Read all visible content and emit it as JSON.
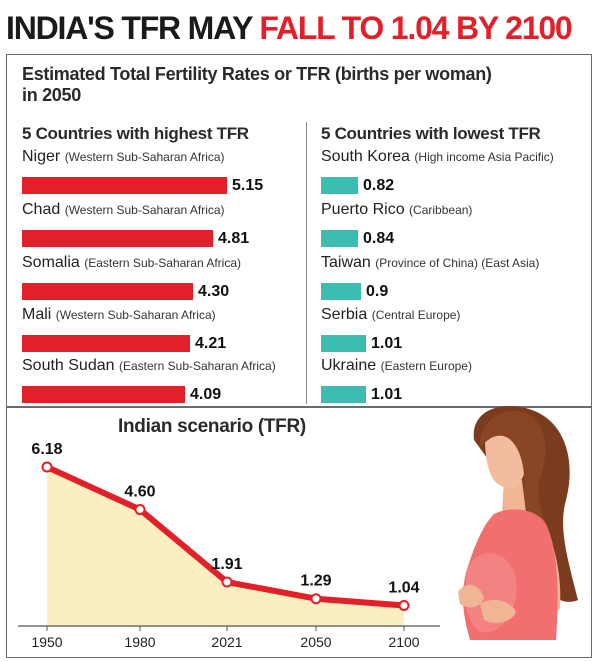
{
  "headline": {
    "part1": "INDIA'S TFR MAY ",
    "part2": "FALL TO 1.04 BY 2100"
  },
  "subtitle": "Estimated Total Fertility Rates or TFR (births per woman) in 2050",
  "chart_data": [
    {
      "type": "bar",
      "title": "5 Countries with highest TFR",
      "categories": [
        "Niger",
        "Chad",
        "Somalia",
        "Mali",
        "South Sudan"
      ],
      "regions": [
        "(Western Sub-Saharan Africa)",
        "(Western Sub-Saharan Africa)",
        "(Eastern Sub-Saharan Africa)",
        "(Western Sub-Saharan Africa)",
        "(Eastern Sub-Saharan Africa)"
      ],
      "values": [
        5.15,
        4.81,
        4.3,
        4.21,
        4.09
      ],
      "labels": [
        "5.15",
        "4.81",
        "4.30",
        "4.21",
        "4.09"
      ],
      "color": "#e3202a"
    },
    {
      "type": "bar",
      "title": "5 Countries with lowest TFR",
      "categories": [
        "South Korea",
        "Puerto Rico",
        "Taiwan",
        "Serbia",
        "Ukraine"
      ],
      "regions": [
        "(High income Asia Pacific)",
        "(Caribbean)",
        "(Province of China) (East Asia)",
        "(Central Europe)",
        "(Eastern Europe)"
      ],
      "values": [
        0.82,
        0.84,
        0.9,
        1.01,
        1.01
      ],
      "labels": [
        "0.82",
        "0.84",
        "0.9",
        "1.01",
        "1.01"
      ],
      "color": "#3dbdb0"
    },
    {
      "type": "area",
      "title": "Indian scenario (TFR)",
      "x": [
        "1950",
        "1980",
        "2021",
        "2050",
        "2100"
      ],
      "values": [
        6.18,
        4.6,
        1.91,
        1.29,
        1.04
      ],
      "labels": [
        "6.18",
        "4.60",
        "1.91",
        "1.29",
        "1.04"
      ],
      "line_color": "#e3202a",
      "fill_color": "#fbeec0"
    }
  ]
}
